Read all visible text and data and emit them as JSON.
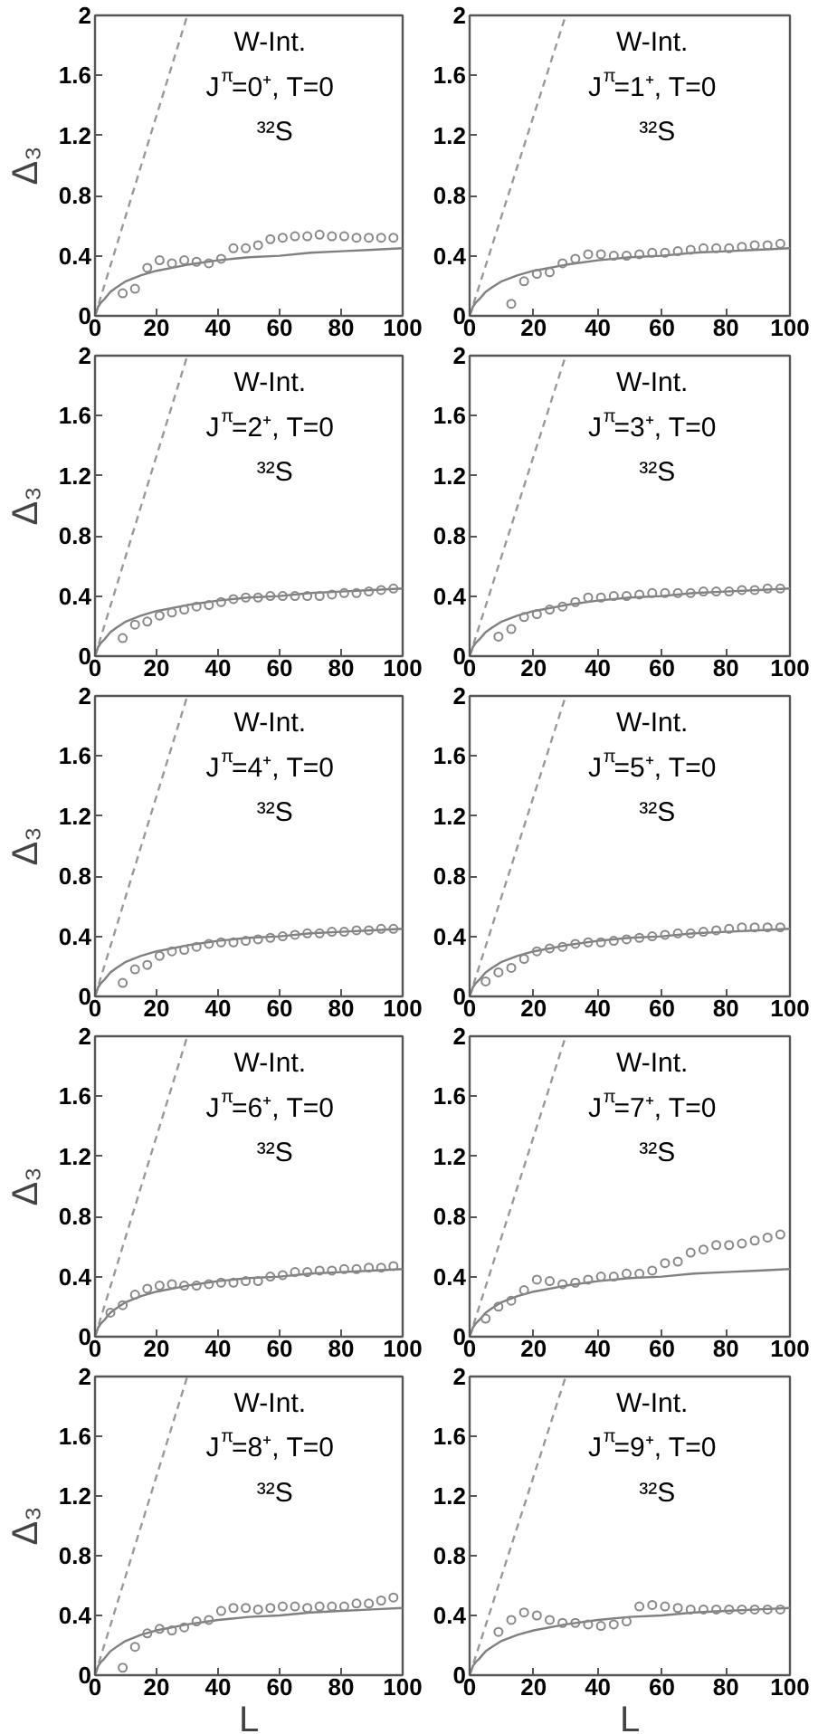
{
  "chart_data": [
    {
      "type": "scatter",
      "annotations": [
        "W-Int.",
        "J$^{π}$=0⁺, T=0",
        "³²S"
      ],
      "ylabel": "Δ₃",
      "xlim": [
        0,
        100
      ],
      "ylim": [
        0,
        2
      ],
      "xticks": [
        0,
        20,
        40,
        60,
        80,
        100
      ],
      "yticks": [
        0,
        0.4,
        0.8,
        1.2,
        1.6,
        2
      ],
      "grid": false,
      "series": [
        {
          "type": "line",
          "line_style": "dashed",
          "color": "#999999",
          "x": [
            0,
            30
          ],
          "values": [
            0,
            2
          ]
        },
        {
          "type": "line",
          "line_style": "solid",
          "color": "#808080",
          "x": [
            0,
            1,
            2,
            3,
            5,
            7,
            10,
            15,
            20,
            30,
            40,
            50,
            60,
            70,
            80,
            90,
            100
          ],
          "values": [
            0,
            0.06,
            0.09,
            0.11,
            0.16,
            0.19,
            0.23,
            0.27,
            0.3,
            0.34,
            0.37,
            0.39,
            0.4,
            0.42,
            0.43,
            0.44,
            0.45
          ]
        },
        {
          "type": "scatter",
          "marker": "circle",
          "color": "#888888",
          "x": [
            9,
            13,
            17,
            21,
            25,
            29,
            33,
            37,
            41,
            45,
            49,
            53,
            57,
            61,
            65,
            69,
            73,
            77,
            81,
            85,
            89,
            93,
            97
          ],
          "values": [
            0.15,
            0.18,
            0.32,
            0.37,
            0.35,
            0.37,
            0.36,
            0.35,
            0.38,
            0.45,
            0.45,
            0.47,
            0.51,
            0.52,
            0.53,
            0.53,
            0.54,
            0.53,
            0.53,
            0.52,
            0.52,
            0.52,
            0.52
          ]
        }
      ]
    },
    {
      "type": "scatter",
      "annotations": [
        "W-Int.",
        "J$^{π}$=1⁺, T=0",
        "³²S"
      ],
      "xlim": [
        0,
        100
      ],
      "ylim": [
        0,
        2
      ],
      "xticks": [
        0,
        20,
        40,
        60,
        80,
        100
      ],
      "yticks": [
        0,
        0.4,
        0.8,
        1.2,
        1.6,
        2
      ],
      "grid": false,
      "series": [
        {
          "type": "line",
          "line_style": "dashed",
          "color": "#999999",
          "x": [
            0,
            30
          ],
          "values": [
            0,
            2
          ]
        },
        {
          "type": "line",
          "line_style": "solid",
          "color": "#808080",
          "x": [
            0,
            1,
            2,
            3,
            5,
            7,
            10,
            15,
            20,
            30,
            40,
            50,
            60,
            70,
            80,
            90,
            100
          ],
          "values": [
            0,
            0.06,
            0.09,
            0.11,
            0.16,
            0.19,
            0.23,
            0.27,
            0.3,
            0.34,
            0.37,
            0.39,
            0.4,
            0.42,
            0.43,
            0.44,
            0.45
          ]
        },
        {
          "type": "scatter",
          "marker": "circle",
          "color": "#888888",
          "x": [
            13,
            17,
            21,
            25,
            29,
            33,
            37,
            41,
            45,
            49,
            53,
            57,
            61,
            65,
            69,
            73,
            77,
            81,
            85,
            89,
            93,
            97
          ],
          "values": [
            0.08,
            0.23,
            0.28,
            0.29,
            0.35,
            0.38,
            0.41,
            0.41,
            0.4,
            0.4,
            0.41,
            0.42,
            0.42,
            0.43,
            0.44,
            0.45,
            0.45,
            0.45,
            0.46,
            0.47,
            0.47,
            0.48
          ]
        }
      ]
    },
    {
      "type": "scatter",
      "annotations": [
        "W-Int.",
        "J$^{π}$=2⁺, T=0",
        "³²S"
      ],
      "ylabel": "Δ₃",
      "xlim": [
        0,
        100
      ],
      "ylim": [
        0,
        2
      ],
      "xticks": [
        0,
        20,
        40,
        60,
        80,
        100
      ],
      "yticks": [
        0,
        0.4,
        0.8,
        1.2,
        1.6,
        2
      ],
      "grid": false,
      "series": [
        {
          "type": "line",
          "line_style": "dashed",
          "color": "#999999",
          "x": [
            0,
            30
          ],
          "values": [
            0,
            2
          ]
        },
        {
          "type": "line",
          "line_style": "solid",
          "color": "#808080",
          "x": [
            0,
            1,
            2,
            3,
            5,
            7,
            10,
            15,
            20,
            30,
            40,
            50,
            60,
            70,
            80,
            90,
            100
          ],
          "values": [
            0,
            0.06,
            0.09,
            0.11,
            0.16,
            0.19,
            0.23,
            0.27,
            0.3,
            0.34,
            0.37,
            0.39,
            0.4,
            0.42,
            0.43,
            0.44,
            0.45
          ]
        },
        {
          "type": "scatter",
          "marker": "circle",
          "color": "#888888",
          "x": [
            9,
            13,
            17,
            21,
            25,
            29,
            33,
            37,
            41,
            45,
            49,
            53,
            57,
            61,
            65,
            69,
            73,
            77,
            81,
            85,
            89,
            93,
            97
          ],
          "values": [
            0.12,
            0.21,
            0.23,
            0.27,
            0.29,
            0.31,
            0.33,
            0.34,
            0.36,
            0.38,
            0.39,
            0.39,
            0.4,
            0.4,
            0.4,
            0.4,
            0.4,
            0.41,
            0.42,
            0.42,
            0.43,
            0.44,
            0.45
          ]
        }
      ]
    },
    {
      "type": "scatter",
      "annotations": [
        "W-Int.",
        "J$^{π}$=3⁺, T=0",
        "³²S"
      ],
      "xlim": [
        0,
        100
      ],
      "ylim": [
        0,
        2
      ],
      "xticks": [
        0,
        20,
        40,
        60,
        80,
        100
      ],
      "yticks": [
        0,
        0.4,
        0.8,
        1.2,
        1.6,
        2
      ],
      "grid": false,
      "series": [
        {
          "type": "line",
          "line_style": "dashed",
          "color": "#999999",
          "x": [
            0,
            30
          ],
          "values": [
            0,
            2
          ]
        },
        {
          "type": "line",
          "line_style": "solid",
          "color": "#808080",
          "x": [
            0,
            1,
            2,
            3,
            5,
            7,
            10,
            15,
            20,
            30,
            40,
            50,
            60,
            70,
            80,
            90,
            100
          ],
          "values": [
            0,
            0.06,
            0.09,
            0.11,
            0.16,
            0.19,
            0.23,
            0.27,
            0.3,
            0.34,
            0.37,
            0.39,
            0.4,
            0.42,
            0.43,
            0.44,
            0.45
          ]
        },
        {
          "type": "scatter",
          "marker": "circle",
          "color": "#888888",
          "x": [
            9,
            13,
            17,
            21,
            25,
            29,
            33,
            37,
            41,
            45,
            49,
            53,
            57,
            61,
            65,
            69,
            73,
            77,
            81,
            85,
            89,
            93,
            97
          ],
          "values": [
            0.13,
            0.18,
            0.26,
            0.28,
            0.31,
            0.33,
            0.36,
            0.39,
            0.39,
            0.4,
            0.4,
            0.41,
            0.42,
            0.42,
            0.42,
            0.42,
            0.43,
            0.43,
            0.43,
            0.44,
            0.44,
            0.45,
            0.45
          ]
        }
      ]
    },
    {
      "type": "scatter",
      "annotations": [
        "W-Int.",
        "J$^{π}$=4⁺, T=0",
        "³²S"
      ],
      "ylabel": "Δ₃",
      "xlim": [
        0,
        100
      ],
      "ylim": [
        0,
        2
      ],
      "xticks": [
        0,
        20,
        40,
        60,
        80,
        100
      ],
      "yticks": [
        0,
        0.4,
        0.8,
        1.2,
        1.6,
        2
      ],
      "grid": false,
      "series": [
        {
          "type": "line",
          "line_style": "dashed",
          "color": "#999999",
          "x": [
            0,
            30
          ],
          "values": [
            0,
            2
          ]
        },
        {
          "type": "line",
          "line_style": "solid",
          "color": "#808080",
          "x": [
            0,
            1,
            2,
            3,
            5,
            7,
            10,
            15,
            20,
            30,
            40,
            50,
            60,
            70,
            80,
            90,
            100
          ],
          "values": [
            0,
            0.06,
            0.09,
            0.11,
            0.16,
            0.19,
            0.23,
            0.27,
            0.3,
            0.34,
            0.37,
            0.39,
            0.4,
            0.42,
            0.43,
            0.44,
            0.45
          ]
        },
        {
          "type": "scatter",
          "marker": "circle",
          "color": "#888888",
          "x": [
            9,
            13,
            17,
            21,
            25,
            29,
            33,
            37,
            41,
            45,
            49,
            53,
            57,
            61,
            65,
            69,
            73,
            77,
            81,
            85,
            89,
            93,
            97
          ],
          "values": [
            0.09,
            0.18,
            0.21,
            0.27,
            0.3,
            0.31,
            0.33,
            0.35,
            0.36,
            0.36,
            0.37,
            0.38,
            0.39,
            0.4,
            0.41,
            0.42,
            0.42,
            0.43,
            0.43,
            0.44,
            0.44,
            0.45,
            0.45
          ]
        }
      ]
    },
    {
      "type": "scatter",
      "annotations": [
        "W-Int.",
        "J$^{π}$=5⁺, T=0",
        "³²S"
      ],
      "xlim": [
        0,
        100
      ],
      "ylim": [
        0,
        2
      ],
      "xticks": [
        0,
        20,
        40,
        60,
        80,
        100
      ],
      "yticks": [
        0,
        0.4,
        0.8,
        1.2,
        1.6,
        2
      ],
      "grid": false,
      "series": [
        {
          "type": "line",
          "line_style": "dashed",
          "color": "#999999",
          "x": [
            0,
            30
          ],
          "values": [
            0,
            2
          ]
        },
        {
          "type": "line",
          "line_style": "solid",
          "color": "#808080",
          "x": [
            0,
            1,
            2,
            3,
            5,
            7,
            10,
            15,
            20,
            30,
            40,
            50,
            60,
            70,
            80,
            90,
            100
          ],
          "values": [
            0,
            0.06,
            0.09,
            0.11,
            0.16,
            0.19,
            0.23,
            0.27,
            0.3,
            0.34,
            0.37,
            0.39,
            0.4,
            0.42,
            0.43,
            0.44,
            0.45
          ]
        },
        {
          "type": "scatter",
          "marker": "circle",
          "color": "#888888",
          "x": [
            5,
            9,
            13,
            17,
            21,
            25,
            29,
            33,
            37,
            41,
            45,
            49,
            53,
            57,
            61,
            65,
            69,
            73,
            77,
            81,
            85,
            89,
            93,
            97
          ],
          "values": [
            0.1,
            0.16,
            0.19,
            0.25,
            0.3,
            0.32,
            0.33,
            0.35,
            0.36,
            0.36,
            0.37,
            0.38,
            0.39,
            0.4,
            0.41,
            0.42,
            0.42,
            0.43,
            0.44,
            0.45,
            0.46,
            0.46,
            0.46,
            0.46
          ]
        }
      ]
    },
    {
      "type": "scatter",
      "annotations": [
        "W-Int.",
        "J$^{π}$=6⁺, T=0",
        "³²S"
      ],
      "ylabel": "Δ₃",
      "xlim": [
        0,
        100
      ],
      "ylim": [
        0,
        2
      ],
      "xticks": [
        0,
        20,
        40,
        60,
        80,
        100
      ],
      "yticks": [
        0,
        0.4,
        0.8,
        1.2,
        1.6,
        2
      ],
      "grid": false,
      "series": [
        {
          "type": "line",
          "line_style": "dashed",
          "color": "#999999",
          "x": [
            0,
            30
          ],
          "values": [
            0,
            2
          ]
        },
        {
          "type": "line",
          "line_style": "solid",
          "color": "#808080",
          "x": [
            0,
            1,
            2,
            3,
            5,
            7,
            10,
            15,
            20,
            30,
            40,
            50,
            60,
            70,
            80,
            90,
            100
          ],
          "values": [
            0,
            0.06,
            0.09,
            0.11,
            0.16,
            0.19,
            0.23,
            0.27,
            0.3,
            0.34,
            0.37,
            0.39,
            0.4,
            0.42,
            0.43,
            0.44,
            0.45
          ]
        },
        {
          "type": "scatter",
          "marker": "circle",
          "color": "#888888",
          "x": [
            5,
            9,
            13,
            17,
            21,
            25,
            29,
            33,
            37,
            41,
            45,
            49,
            53,
            57,
            61,
            65,
            69,
            73,
            77,
            81,
            85,
            89,
            93,
            97
          ],
          "values": [
            0.16,
            0.21,
            0.28,
            0.32,
            0.34,
            0.35,
            0.34,
            0.34,
            0.35,
            0.36,
            0.36,
            0.37,
            0.37,
            0.4,
            0.41,
            0.43,
            0.43,
            0.44,
            0.44,
            0.45,
            0.45,
            0.46,
            0.46,
            0.47
          ]
        }
      ]
    },
    {
      "type": "scatter",
      "annotations": [
        "W-Int.",
        "J$^{π}$=7⁺, T=0",
        "³²S"
      ],
      "xlim": [
        0,
        100
      ],
      "ylim": [
        0,
        2
      ],
      "xticks": [
        0,
        20,
        40,
        60,
        80,
        100
      ],
      "yticks": [
        0,
        0.4,
        0.8,
        1.2,
        1.6,
        2
      ],
      "grid": false,
      "series": [
        {
          "type": "line",
          "line_style": "dashed",
          "color": "#999999",
          "x": [
            0,
            30
          ],
          "values": [
            0,
            2
          ]
        },
        {
          "type": "line",
          "line_style": "solid",
          "color": "#808080",
          "x": [
            0,
            1,
            2,
            3,
            5,
            7,
            10,
            15,
            20,
            30,
            40,
            50,
            60,
            70,
            80,
            90,
            100
          ],
          "values": [
            0,
            0.06,
            0.09,
            0.11,
            0.16,
            0.19,
            0.23,
            0.27,
            0.3,
            0.34,
            0.37,
            0.39,
            0.4,
            0.42,
            0.43,
            0.44,
            0.45
          ]
        },
        {
          "type": "scatter",
          "marker": "circle",
          "color": "#888888",
          "x": [
            5,
            9,
            13,
            17,
            21,
            25,
            29,
            33,
            37,
            41,
            45,
            49,
            53,
            57,
            61,
            65,
            69,
            73,
            77,
            81,
            85,
            89,
            93,
            97
          ],
          "values": [
            0.12,
            0.2,
            0.24,
            0.31,
            0.38,
            0.37,
            0.35,
            0.36,
            0.38,
            0.4,
            0.4,
            0.42,
            0.42,
            0.44,
            0.49,
            0.5,
            0.56,
            0.58,
            0.61,
            0.61,
            0.62,
            0.64,
            0.66,
            0.68
          ]
        }
      ]
    },
    {
      "type": "scatter",
      "annotations": [
        "W-Int.",
        "J$^{π}$=8⁺, T=0",
        "³²S"
      ],
      "ylabel": "Δ₃",
      "xlabel": "L",
      "xlim": [
        0,
        100
      ],
      "ylim": [
        0,
        2
      ],
      "xticks": [
        0,
        20,
        40,
        60,
        80,
        100
      ],
      "yticks": [
        0,
        0.4,
        0.8,
        1.2,
        1.6,
        2
      ],
      "grid": false,
      "series": [
        {
          "type": "line",
          "line_style": "dashed",
          "color": "#999999",
          "x": [
            0,
            30
          ],
          "values": [
            0,
            2
          ]
        },
        {
          "type": "line",
          "line_style": "solid",
          "color": "#808080",
          "x": [
            0,
            1,
            2,
            3,
            5,
            7,
            10,
            15,
            20,
            30,
            40,
            50,
            60,
            70,
            80,
            90,
            100
          ],
          "values": [
            0,
            0.06,
            0.09,
            0.11,
            0.16,
            0.19,
            0.23,
            0.27,
            0.3,
            0.34,
            0.37,
            0.39,
            0.4,
            0.42,
            0.43,
            0.44,
            0.45
          ]
        },
        {
          "type": "scatter",
          "marker": "circle",
          "color": "#888888",
          "x": [
            9,
            13,
            17,
            21,
            25,
            29,
            33,
            37,
            41,
            45,
            49,
            53,
            57,
            61,
            65,
            69,
            73,
            77,
            81,
            85,
            89,
            93,
            97
          ],
          "values": [
            0.05,
            0.19,
            0.28,
            0.31,
            0.3,
            0.32,
            0.36,
            0.37,
            0.43,
            0.45,
            0.45,
            0.44,
            0.45,
            0.46,
            0.46,
            0.45,
            0.46,
            0.46,
            0.46,
            0.48,
            0.48,
            0.5,
            0.52
          ]
        }
      ]
    },
    {
      "type": "scatter",
      "annotations": [
        "W-Int.",
        "J$^{π}$=9⁺, T=0",
        "³²S"
      ],
      "xlabel": "L",
      "xlim": [
        0,
        100
      ],
      "ylim": [
        0,
        2
      ],
      "xticks": [
        0,
        20,
        40,
        60,
        80,
        100
      ],
      "yticks": [
        0,
        0.4,
        0.8,
        1.2,
        1.6,
        2
      ],
      "grid": false,
      "series": [
        {
          "type": "line",
          "line_style": "dashed",
          "color": "#999999",
          "x": [
            0,
            30
          ],
          "values": [
            0,
            2
          ]
        },
        {
          "type": "line",
          "line_style": "solid",
          "color": "#808080",
          "x": [
            0,
            1,
            2,
            3,
            5,
            7,
            10,
            15,
            20,
            30,
            40,
            50,
            60,
            70,
            80,
            90,
            100
          ],
          "values": [
            0,
            0.06,
            0.09,
            0.11,
            0.16,
            0.19,
            0.23,
            0.27,
            0.3,
            0.34,
            0.37,
            0.39,
            0.4,
            0.42,
            0.43,
            0.44,
            0.45
          ]
        },
        {
          "type": "scatter",
          "marker": "circle",
          "color": "#888888",
          "x": [
            9,
            13,
            17,
            21,
            25,
            29,
            33,
            37,
            41,
            45,
            49,
            53,
            57,
            61,
            65,
            69,
            73,
            77,
            81,
            85,
            89,
            93,
            97
          ],
          "values": [
            0.29,
            0.37,
            0.42,
            0.4,
            0.37,
            0.35,
            0.35,
            0.34,
            0.33,
            0.34,
            0.36,
            0.46,
            0.47,
            0.46,
            0.45,
            0.44,
            0.44,
            0.44,
            0.44,
            0.44,
            0.44,
            0.44,
            0.44
          ]
        }
      ]
    }
  ]
}
